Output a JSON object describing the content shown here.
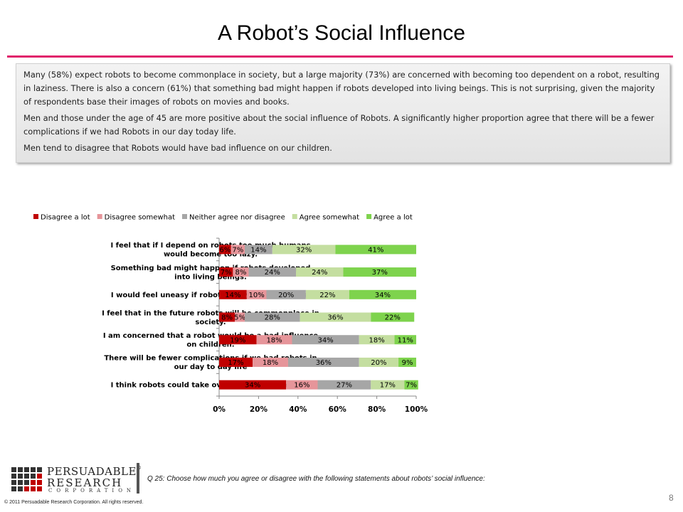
{
  "slide": {
    "title": "A Robot’s Social Influence",
    "summary_paragraphs": [
      "Many (58%) expect robots to become commonplace in society, but a large majority (73%) are concerned with becoming too dependent on a robot, resulting in laziness. There is also a concern (61%) that something bad might happen if robots developed into living beings. This is not surprising, given the majority of respondents base their images of robots on movies and books.",
      "Men and those under the age of 45 are more positive about the social influence of Robots. A significantly higher proportion agree that there will be a fewer complications if we had Robots in our day today life.",
      "Men tend to disagree that Robots would have bad influence on our children."
    ],
    "accent_color": "#e0216b"
  },
  "footer": {
    "logo_line1": "PERSUADABLE",
    "logo_line2": "RESEARCH",
    "logo_line3": "CORPORATION",
    "logo_mark": "®",
    "question": "Q 25: Choose how much you agree or disagree with the following statements about robots’ social influence:",
    "copyright": "© 2011 Persuadable Research Corporation. All rights reserved.",
    "page_number": "8"
  },
  "chart_data": {
    "type": "bar",
    "orientation": "horizontal",
    "stacked": true,
    "categories": [
      [
        "I feel that if I depend on robots too much humans",
        "would become too lazy."
      ],
      [
        "Something bad might happen if robots developed",
        "into living beings."
      ],
      [
        "I would feel uneasy if robots really had emotions."
      ],
      [
        "I feel that in the future robots will be commonplace in",
        "society."
      ],
      [
        "I am concerned that a robot would be a bad influence",
        "on children."
      ],
      [
        "There will be fewer complications if we had robots in",
        "our day to day life"
      ],
      [
        "I think robots could take over the world someday."
      ]
    ],
    "series": [
      {
        "name": "Disagree a lot",
        "color": "#c00000",
        "values": [
          6,
          7,
          14,
          8,
          19,
          17,
          34
        ]
      },
      {
        "name": "Disagree somewhat",
        "color": "#e6959a",
        "values": [
          7,
          8,
          10,
          5,
          18,
          18,
          16
        ]
      },
      {
        "name": "Neither agree nor disagree",
        "color": "#a6a6a6",
        "values": [
          14,
          24,
          20,
          28,
          34,
          36,
          27
        ]
      },
      {
        "name": "Agree somewhat",
        "color": "#c4dea0",
        "values": [
          32,
          24,
          22,
          36,
          18,
          20,
          17
        ]
      },
      {
        "name": "Agree a lot",
        "color": "#7ed34d",
        "values": [
          41,
          37,
          34,
          22,
          11,
          9,
          7
        ]
      }
    ],
    "xlim": [
      0,
      100
    ],
    "x_ticks": [
      "0%",
      "20%",
      "40%",
      "60%",
      "80%",
      "100%"
    ],
    "value_suffix": "%",
    "legend_position": "top",
    "grid": false
  }
}
